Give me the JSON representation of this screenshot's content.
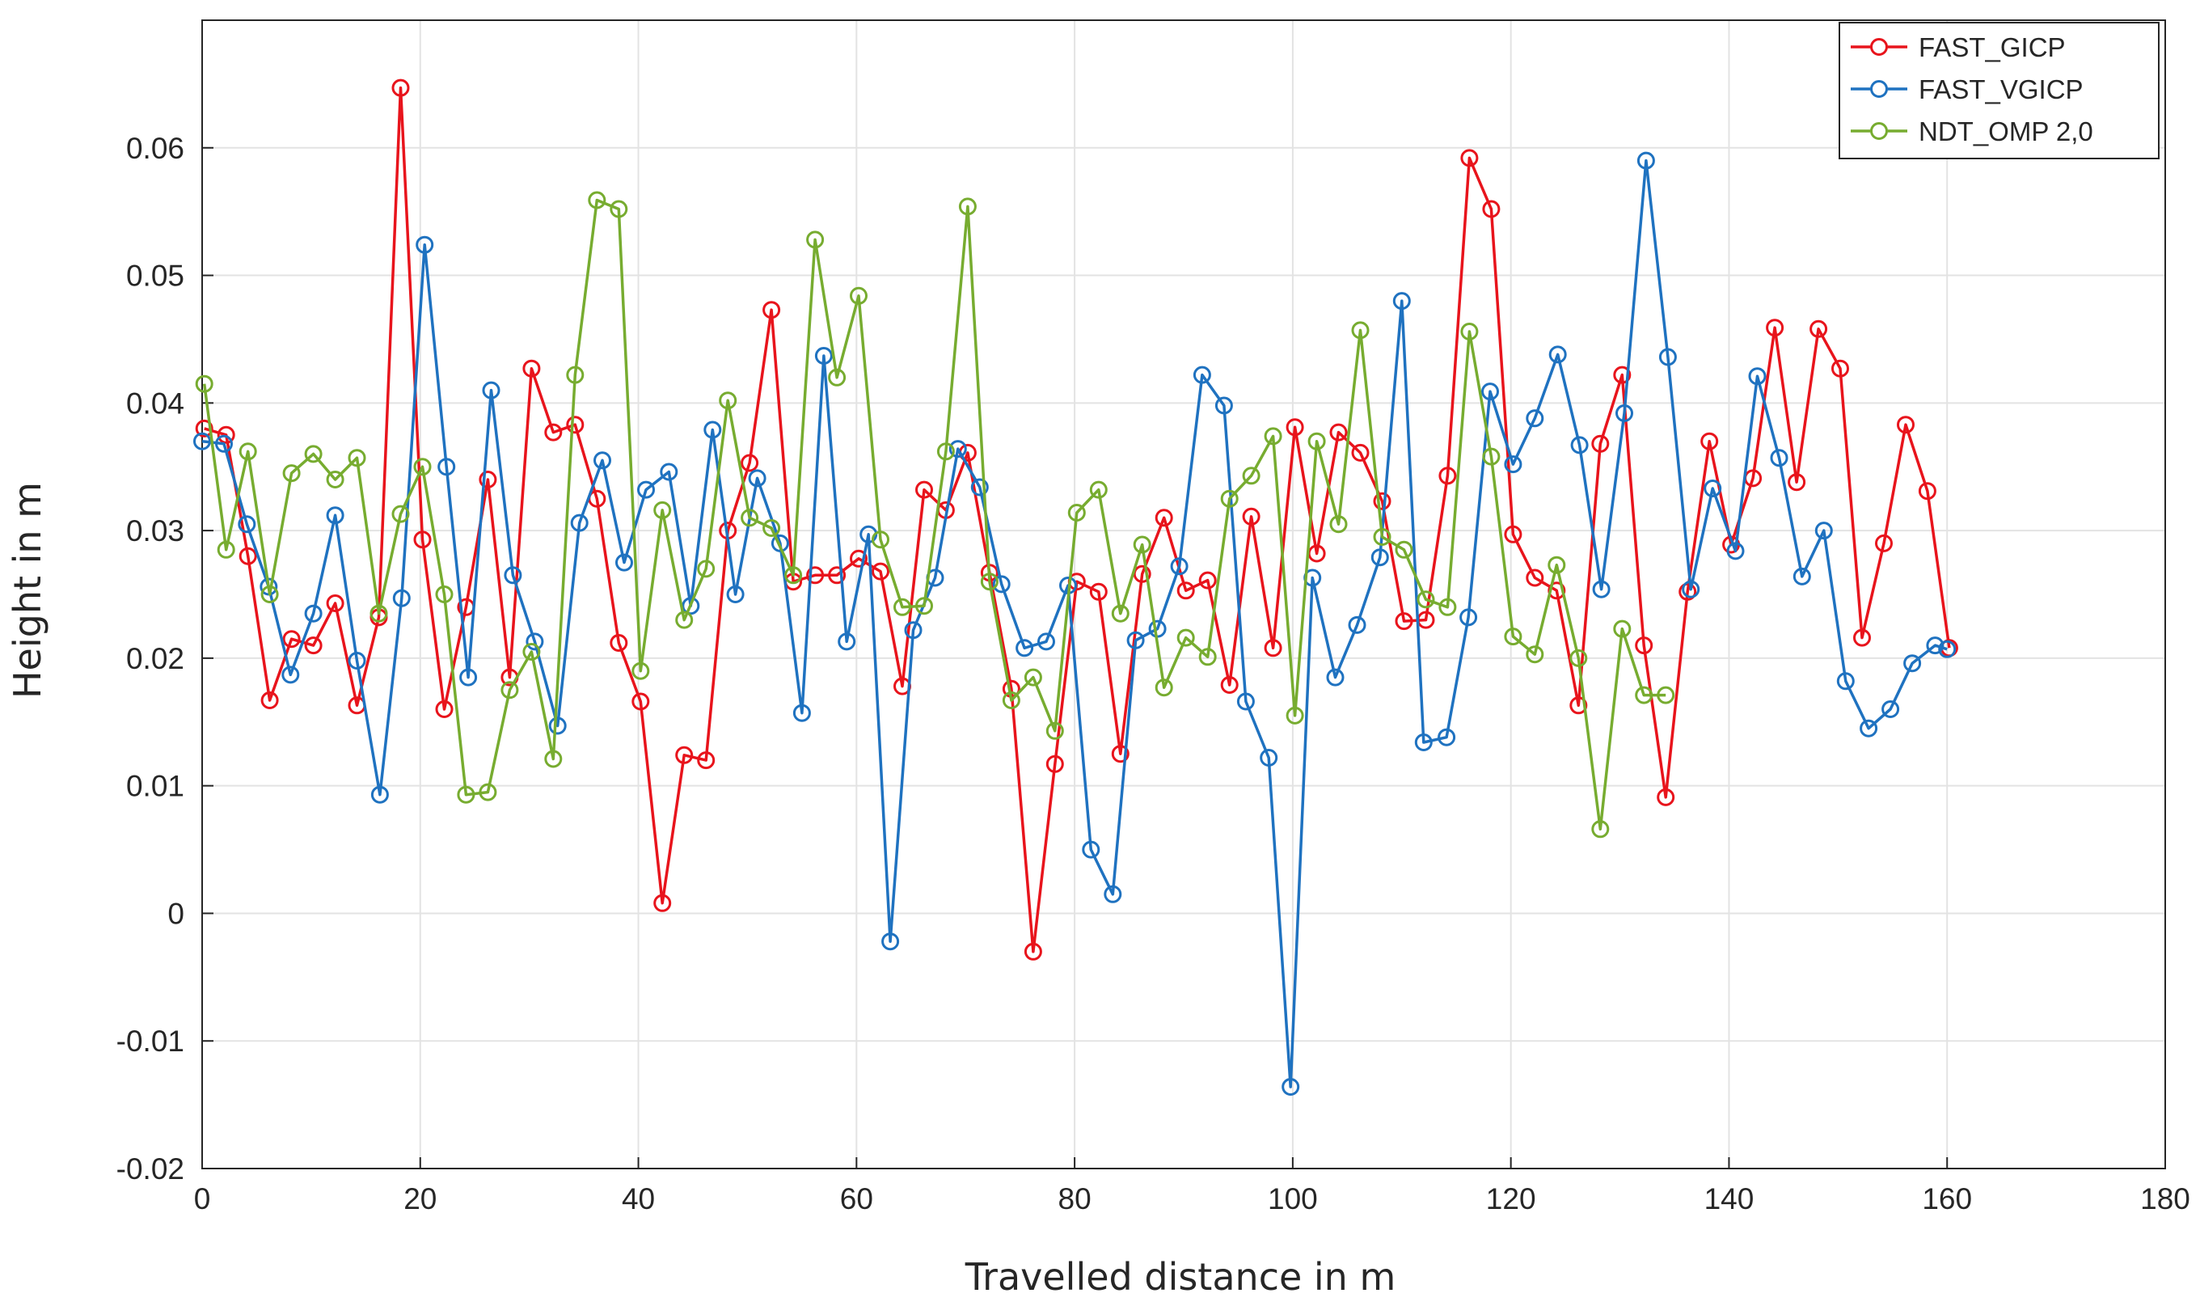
{
  "chart_data": {
    "type": "line",
    "title": "",
    "xlabel": "Travelled distance in m",
    "ylabel": "Height in m",
    "xlim": [
      0,
      180
    ],
    "ylim": [
      -0.02,
      0.07
    ],
    "grid": true,
    "legend_position": "top-right",
    "x_ticks": [
      0,
      20,
      40,
      60,
      80,
      100,
      120,
      140,
      160,
      180
    ],
    "x_tick_labels": [
      "0",
      "20",
      "40",
      "60",
      "80",
      "100",
      "120",
      "140",
      "160",
      "180"
    ],
    "y_ticks": [
      -0.02,
      -0.01,
      0,
      0.01,
      0.02,
      0.03,
      0.04,
      0.05,
      0.06
    ],
    "y_tick_labels": [
      "-0.02",
      "-0.01",
      "0",
      "0.01",
      "0.02",
      "0.03",
      "0.04",
      "0.05",
      "0.06"
    ],
    "series": [
      {
        "name": "FAST_GICP",
        "color": "#e8141c",
        "x": [
          0.2,
          2.2,
          4.2,
          6.2,
          8.2,
          10.2,
          12.2,
          14.2,
          16.2,
          18.2,
          20.2,
          22.2,
          24.2,
          26.2,
          28.2,
          30.2,
          32.2,
          34.2,
          36.2,
          38.2,
          40.2,
          42.2,
          44.2,
          46.2,
          48.2,
          50.2,
          52.2,
          54.2,
          56.2,
          58.2,
          60.2,
          62.2,
          64.2,
          66.2,
          68.2,
          70.2,
          72.2,
          74.2,
          76.2,
          78.2,
          80.2,
          82.2,
          84.2,
          86.2,
          88.2,
          90.2,
          92.2,
          94.2,
          96.2,
          98.2,
          100.2,
          102.2,
          104.2,
          106.2,
          108.2,
          110.2,
          112.2,
          114.2,
          116.2,
          118.2,
          120.2,
          122.2,
          124.2,
          126.2,
          128.2,
          130.2,
          132.2,
          134.2,
          136.2,
          138.2,
          140.2,
          142.2,
          144.2,
          146.2,
          148.2,
          150.2,
          152.2,
          154.2,
          156.2,
          158.2,
          160.2
        ],
        "y": [
          0.038,
          0.0375,
          0.028,
          0.0167,
          0.0215,
          0.021,
          0.0243,
          0.0163,
          0.0232,
          0.0647,
          0.0293,
          0.016,
          0.024,
          0.034,
          0.0185,
          0.0427,
          0.0377,
          0.0383,
          0.0325,
          0.0212,
          0.0166,
          0.0008,
          0.0124,
          0.012,
          0.03,
          0.0353,
          0.0473,
          0.026,
          0.0265,
          0.0265,
          0.0278,
          0.0268,
          0.0178,
          0.0332,
          0.0316,
          0.0361,
          0.0267,
          0.0176,
          -0.003,
          0.0117,
          0.026,
          0.0252,
          0.0125,
          0.0266,
          0.031,
          0.0253,
          0.0261,
          0.0179,
          0.0311,
          0.0208,
          0.0381,
          0.0282,
          0.0377,
          0.0361,
          0.0323,
          0.0229,
          0.023,
          0.0343,
          0.0592,
          0.0552,
          0.0297,
          0.0263,
          0.0253,
          0.0163,
          0.0368,
          0.0422,
          0.021,
          0.0091,
          0.0252,
          0.037,
          0.0289,
          0.0341,
          0.0459,
          0.0338,
          0.0458,
          0.0427,
          0.0216,
          0.029,
          0.0383,
          0.0331,
          0.0208
        ]
      },
      {
        "name": "FAST_VGICP",
        "color": "#1f72c0",
        "x": [
          0.0,
          2.0,
          4.1,
          6.1,
          8.1,
          10.2,
          12.2,
          14.2,
          16.3,
          18.3,
          20.4,
          22.4,
          24.4,
          26.5,
          28.5,
          30.5,
          32.6,
          34.6,
          36.7,
          38.7,
          40.7,
          42.8,
          44.8,
          46.8,
          48.9,
          50.9,
          53.0,
          55.0,
          57.0,
          59.1,
          61.1,
          63.1,
          65.2,
          67.2,
          69.3,
          71.3,
          73.3,
          75.4,
          77.4,
          79.4,
          81.5,
          83.5,
          85.6,
          87.6,
          89.6,
          91.7,
          93.7,
          95.7,
          97.8,
          99.8,
          101.8,
          103.9,
          105.9,
          108.0,
          110.0,
          112.0,
          114.1,
          116.1,
          118.1,
          120.2,
          122.2,
          124.3,
          126.3,
          128.3,
          130.4,
          132.4,
          134.4,
          136.5,
          138.5,
          140.6,
          142.6,
          144.6,
          146.7,
          148.7,
          150.7,
          152.8,
          154.8,
          156.8,
          158.9,
          160.0
        ],
        "y": [
          0.037,
          0.0368,
          0.0305,
          0.0256,
          0.0187,
          0.0235,
          0.0312,
          0.0198,
          0.0093,
          0.0247,
          0.0524,
          0.035,
          0.0185,
          0.041,
          0.0265,
          0.0213,
          0.0147,
          0.0306,
          0.0355,
          0.0275,
          0.0332,
          0.0346,
          0.0241,
          0.0379,
          0.025,
          0.0341,
          0.029,
          0.0157,
          0.0437,
          0.0213,
          0.0297,
          -0.0022,
          0.0222,
          0.0263,
          0.0364,
          0.0334,
          0.0258,
          0.0208,
          0.0213,
          0.0257,
          0.005,
          0.0015,
          0.0214,
          0.0223,
          0.0272,
          0.0422,
          0.0398,
          0.0166,
          0.0122,
          -0.0136,
          0.0263,
          0.0185,
          0.0226,
          0.0279,
          0.048,
          0.0134,
          0.0138,
          0.0232,
          0.0409,
          0.0352,
          0.0388,
          0.0438,
          0.0367,
          0.0254,
          0.0392,
          0.059,
          0.0436,
          0.0254,
          0.0333,
          0.0284,
          0.0421,
          0.0357,
          0.0264,
          0.03,
          0.0182,
          0.0145,
          0.016,
          0.0196,
          0.021,
          0.0207
        ]
      },
      {
        "name": "NDT_OMP 2,0",
        "color": "#77ac30",
        "x": [
          0.2,
          2.2,
          4.2,
          6.2,
          8.2,
          10.2,
          12.2,
          14.2,
          16.2,
          18.2,
          20.2,
          22.2,
          24.2,
          26.2,
          28.2,
          30.2,
          32.2,
          34.2,
          36.2,
          38.2,
          40.2,
          42.2,
          44.2,
          46.2,
          48.2,
          50.2,
          52.2,
          54.2,
          56.2,
          58.2,
          60.2,
          62.2,
          64.2,
          66.2,
          68.2,
          70.2,
          72.2,
          74.2,
          76.2,
          78.2,
          80.2,
          82.2,
          84.2,
          86.2,
          88.2,
          90.2,
          92.2,
          94.2,
          96.2,
          98.2,
          100.2,
          102.2,
          104.2,
          106.2,
          108.2,
          110.2,
          112.2,
          114.2,
          116.2,
          118.2,
          120.2,
          122.2,
          124.2,
          126.2,
          128.2,
          130.2,
          132.2,
          134.2
        ],
        "y": [
          0.0415,
          0.0285,
          0.0362,
          0.025,
          0.0345,
          0.036,
          0.034,
          0.0357,
          0.0235,
          0.0313,
          0.035,
          0.025,
          0.0093,
          0.0095,
          0.0175,
          0.0205,
          0.0121,
          0.0422,
          0.0559,
          0.0552,
          0.019,
          0.0316,
          0.023,
          0.027,
          0.0402,
          0.031,
          0.0302,
          0.0265,
          0.0528,
          0.042,
          0.0484,
          0.0293,
          0.024,
          0.0241,
          0.0362,
          0.0554,
          0.026,
          0.0167,
          0.0185,
          0.0143,
          0.0314,
          0.0332,
          0.0235,
          0.0289,
          0.0177,
          0.0216,
          0.0201,
          0.0325,
          0.0343,
          0.0374,
          0.0155,
          0.037,
          0.0305,
          0.0457,
          0.0295,
          0.0285,
          0.0246,
          0.024,
          0.0456,
          0.0358,
          0.0217,
          0.0203,
          0.0273,
          0.02,
          0.0066,
          0.0223,
          0.0171,
          0.0171
        ]
      }
    ]
  }
}
